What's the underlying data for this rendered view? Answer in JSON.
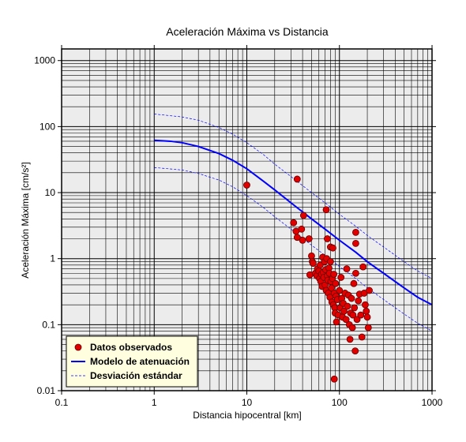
{
  "chart_data": {
    "type": "scatter",
    "title": "Aceleración Máxima vs Distancia",
    "xlabel": "Distancia hipocentral [km]",
    "ylabel": "Aceleración Máxima [cm/s²]",
    "xscale": "log",
    "yscale": "log",
    "xlim": [
      0.1,
      1000
    ],
    "ylim": [
      0.01,
      1500
    ],
    "x_tick_labels": [
      "0.1",
      "1",
      "10",
      "100",
      "1000"
    ],
    "y_tick_labels": [
      "0.01",
      "0.1",
      "1",
      "10",
      "100",
      "1000"
    ],
    "grid": true,
    "legend_position": "bottom-left",
    "colors": {
      "plot_background": "#ececec",
      "points": "#e00000",
      "model_line": "#0000ff",
      "legend_background": "#ffffe0"
    },
    "series": [
      {
        "name": "Datos observados",
        "kind": "points",
        "points": [
          [
            10,
            13
          ],
          [
            35,
            16
          ],
          [
            32,
            3.5
          ],
          [
            34,
            2.6
          ],
          [
            35,
            2.1
          ],
          [
            39,
            2.8
          ],
          [
            40,
            1.9
          ],
          [
            41,
            4.5
          ],
          [
            47,
            2.0
          ],
          [
            72,
            5.5
          ],
          [
            74,
            2.0
          ],
          [
            150,
            2.5
          ],
          [
            150,
            1.7
          ],
          [
            50,
            1.1
          ],
          [
            51,
            0.9
          ],
          [
            52,
            0.85
          ],
          [
            48,
            0.57
          ],
          [
            55,
            0.6
          ],
          [
            57,
            0.55
          ],
          [
            58,
            0.7
          ],
          [
            60,
            0.65
          ],
          [
            61,
            0.5
          ],
          [
            62,
            0.8
          ],
          [
            63,
            0.45
          ],
          [
            64,
            0.58
          ],
          [
            65,
            0.38
          ],
          [
            66,
            1.05
          ],
          [
            67,
            0.62
          ],
          [
            68,
            0.52
          ],
          [
            69,
            0.9
          ],
          [
            70,
            0.4
          ],
          [
            71,
            0.68
          ],
          [
            72,
            0.33
          ],
          [
            73,
            1.0
          ],
          [
            74,
            0.55
          ],
          [
            75,
            0.47
          ],
          [
            76,
            0.3
          ],
          [
            77,
            0.72
          ],
          [
            78,
            0.6
          ],
          [
            79,
            0.26
          ],
          [
            80,
            1.5
          ],
          [
            80,
            0.9
          ],
          [
            81,
            0.45
          ],
          [
            82,
            0.36
          ],
          [
            83,
            0.22
          ],
          [
            84,
            0.5
          ],
          [
            85,
            1.45
          ],
          [
            86,
            0.2
          ],
          [
            87,
            0.58
          ],
          [
            88,
            0.3
          ],
          [
            89,
            0.18
          ],
          [
            90,
            0.15
          ],
          [
            91,
            0.42
          ],
          [
            92,
            0.27
          ],
          [
            93,
            0.11
          ],
          [
            95,
            0.24
          ],
          [
            97,
            0.14
          ],
          [
            100,
            0.33
          ],
          [
            102,
            0.18
          ],
          [
            104,
            0.52
          ],
          [
            106,
            0.25
          ],
          [
            108,
            0.13
          ],
          [
            110,
            0.21
          ],
          [
            112,
            0.16
          ],
          [
            115,
            0.3
          ],
          [
            118,
            0.12
          ],
          [
            120,
            0.7
          ],
          [
            122,
            0.19
          ],
          [
            125,
            0.28
          ],
          [
            128,
            0.1
          ],
          [
            130,
            0.06
          ],
          [
            132,
            0.15
          ],
          [
            135,
            0.25
          ],
          [
            138,
            0.09
          ],
          [
            140,
            0.14
          ],
          [
            143,
            0.42
          ],
          [
            145,
            0.18
          ],
          [
            148,
            0.04
          ],
          [
            150,
            0.6
          ],
          [
            155,
            0.12
          ],
          [
            160,
            0.23
          ],
          [
            165,
            0.29
          ],
          [
            170,
            0.14
          ],
          [
            175,
            0.065
          ],
          [
            180,
            0.75
          ],
          [
            185,
            0.3
          ],
          [
            190,
            0.2
          ],
          [
            195,
            0.16
          ],
          [
            200,
            0.13
          ],
          [
            205,
            0.09
          ],
          [
            210,
            0.33
          ],
          [
            88,
            0.015
          ]
        ]
      },
      {
        "name": "Modelo de atenuación",
        "kind": "line",
        "points": [
          [
            1,
            62
          ],
          [
            1.5,
            60
          ],
          [
            2,
            57
          ],
          [
            3,
            50
          ],
          [
            5,
            39
          ],
          [
            7,
            31
          ],
          [
            10,
            23
          ],
          [
            15,
            15
          ],
          [
            20,
            11
          ],
          [
            30,
            7
          ],
          [
            50,
            4
          ],
          [
            70,
            2.8
          ],
          [
            100,
            1.9
          ],
          [
            150,
            1.25
          ],
          [
            200,
            0.9
          ],
          [
            300,
            0.6
          ],
          [
            500,
            0.36
          ],
          [
            700,
            0.26
          ],
          [
            1000,
            0.2
          ]
        ]
      },
      {
        "name": "Desviación estándar",
        "kind": "dashed",
        "points": [
          [
            1,
            155
          ],
          [
            2,
            140
          ],
          [
            3,
            125
          ],
          [
            5,
            97
          ],
          [
            7,
            77
          ],
          [
            10,
            57
          ],
          [
            15,
            38
          ],
          [
            20,
            27
          ],
          [
            30,
            17.5
          ],
          [
            50,
            10
          ],
          [
            70,
            7
          ],
          [
            100,
            4.7
          ],
          [
            150,
            3.1
          ],
          [
            200,
            2.25
          ],
          [
            300,
            1.5
          ],
          [
            500,
            0.9
          ],
          [
            700,
            0.65
          ],
          [
            1000,
            0.5
          ]
        ]
      },
      {
        "name": "",
        "kind": "dashed",
        "points": [
          [
            1,
            24
          ],
          [
            2,
            22
          ],
          [
            3,
            19.5
          ],
          [
            5,
            15.5
          ],
          [
            7,
            12.3
          ],
          [
            10,
            9
          ],
          [
            15,
            6
          ],
          [
            20,
            4.3
          ],
          [
            30,
            2.8
          ],
          [
            50,
            1.6
          ],
          [
            70,
            1.12
          ],
          [
            100,
            0.76
          ],
          [
            150,
            0.5
          ],
          [
            200,
            0.36
          ],
          [
            300,
            0.24
          ],
          [
            500,
            0.145
          ],
          [
            700,
            0.105
          ],
          [
            1000,
            0.08
          ]
        ]
      }
    ]
  }
}
